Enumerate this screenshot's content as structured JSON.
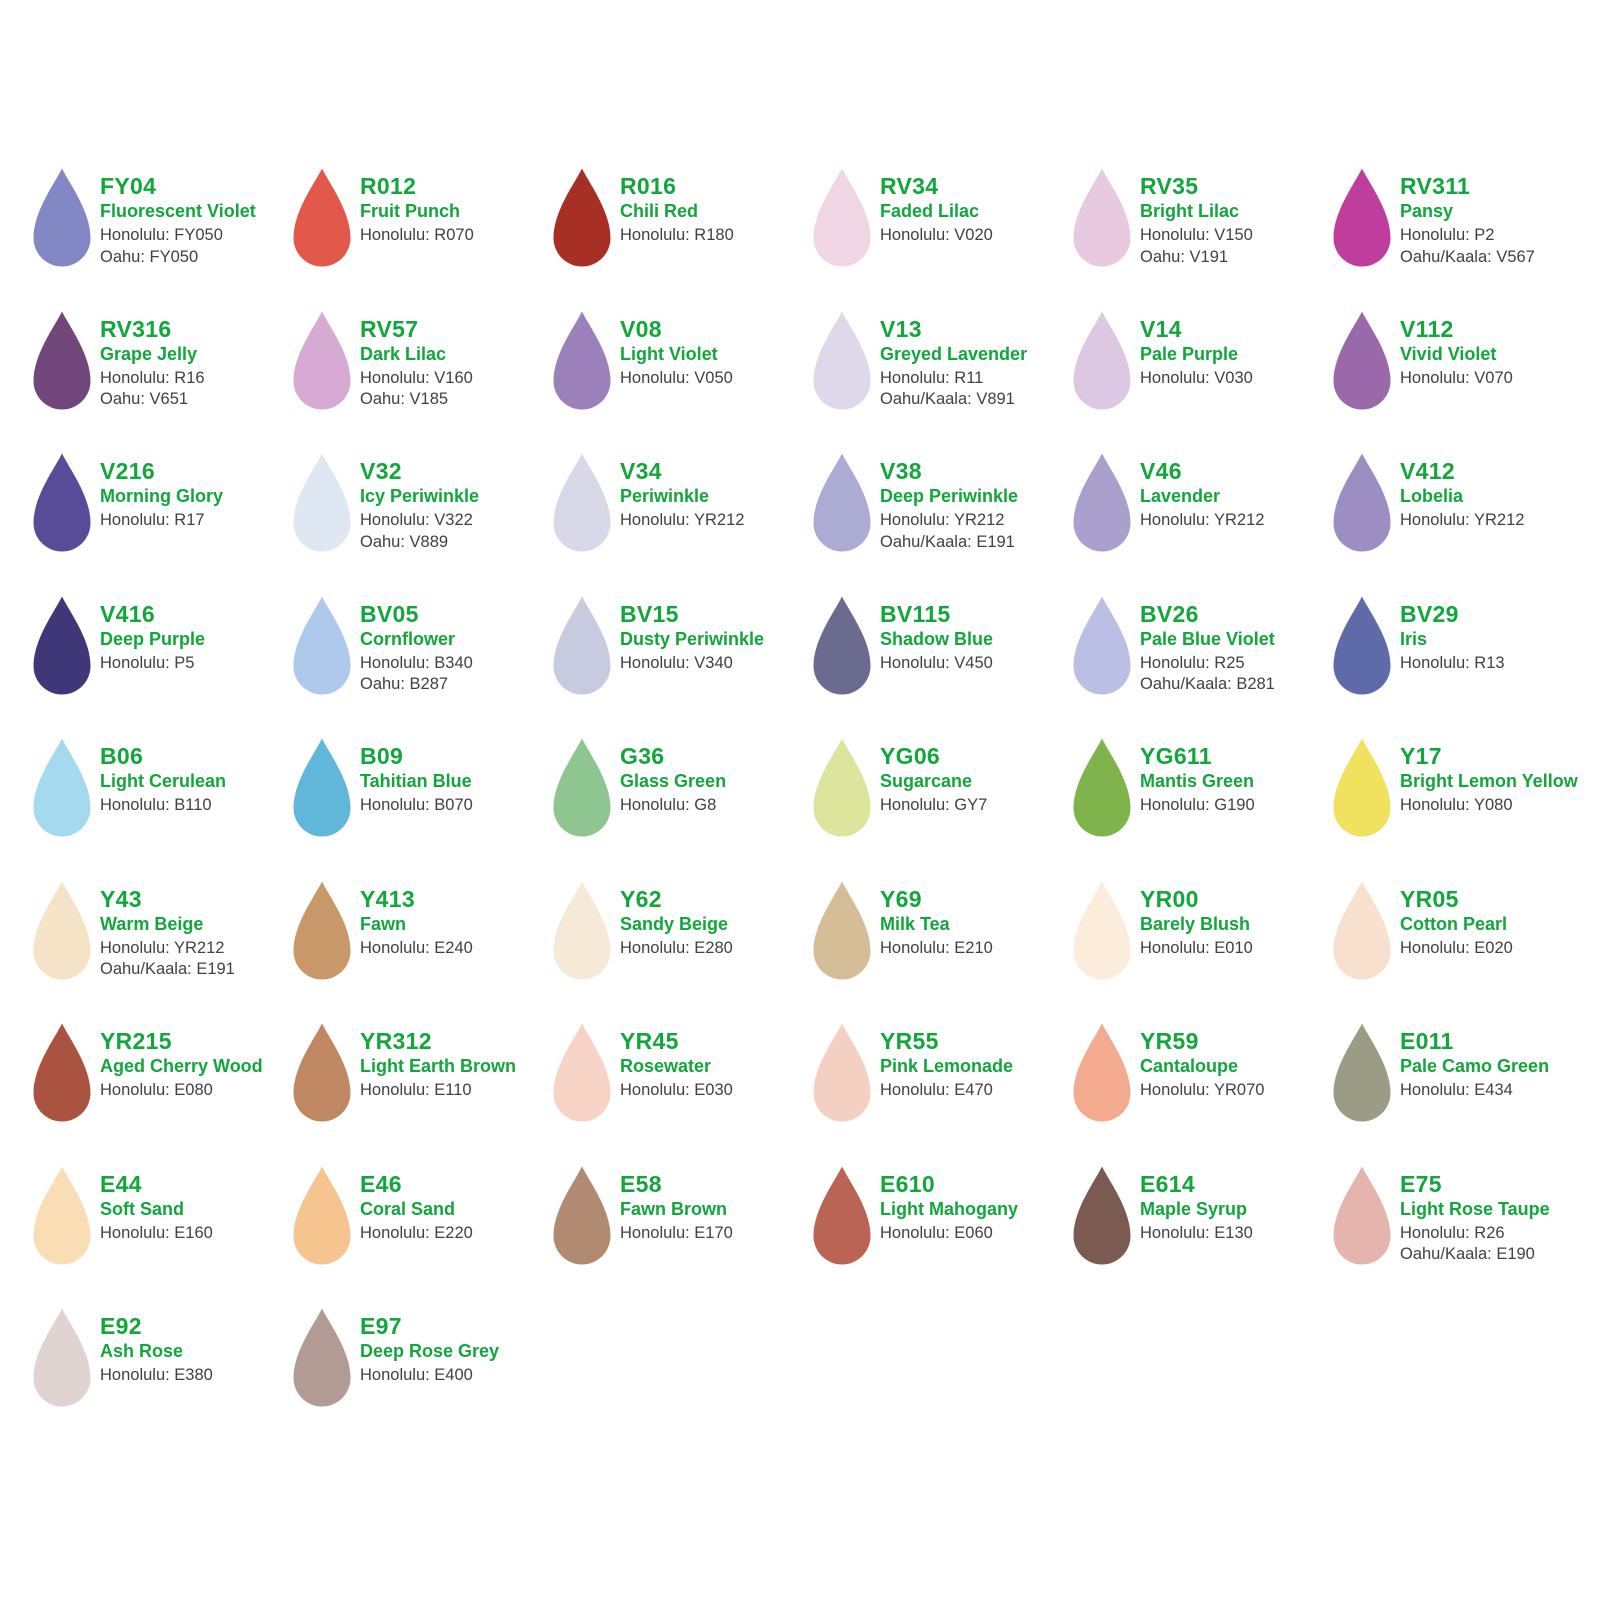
{
  "colors": {
    "accent_green": "#12A63C",
    "label_gray": "#414042",
    "background": "#FFFFFF"
  },
  "swatches": [
    {
      "code": "FY04",
      "name": "Fluorescent Violet",
      "color": "#8288C4",
      "equivalents": [
        "Honolulu: FY050",
        "Oahu: FY050"
      ]
    },
    {
      "code": "R012",
      "name": "Fruit Punch",
      "color": "#E2594B",
      "equivalents": [
        "Honolulu: R070"
      ]
    },
    {
      "code": "R016",
      "name": "Chili Red",
      "color": "#A72F23",
      "equivalents": [
        "Honolulu: R180"
      ]
    },
    {
      "code": "RV34",
      "name": "Faded Lilac",
      "color": "#F0D5E5",
      "equivalents": [
        "Honolulu: V020"
      ]
    },
    {
      "code": "RV35",
      "name": "Bright Lilac",
      "color": "#E7CADF",
      "equivalents": [
        "Honolulu: V150",
        "Oahu: V191"
      ]
    },
    {
      "code": "RV311",
      "name": "Pansy",
      "color": "#BF3D9C",
      "equivalents": [
        "Honolulu: P2",
        "Oahu/Kaala: V567"
      ]
    },
    {
      "code": "RV316",
      "name": "Grape Jelly",
      "color": "#71477B",
      "equivalents": [
        "Honolulu: R16",
        "Oahu: V651"
      ]
    },
    {
      "code": "RV57",
      "name": "Dark Lilac",
      "color": "#D6AAD2",
      "equivalents": [
        "Honolulu: V160",
        "Oahu: V185"
      ]
    },
    {
      "code": "V08",
      "name": "Light Violet",
      "color": "#9C80BA",
      "equivalents": [
        "Honolulu: V050"
      ]
    },
    {
      "code": "V13",
      "name": "Greyed Lavender",
      "color": "#DFD8EA",
      "equivalents": [
        "Honolulu: R11",
        "Oahu/Kaala: V891"
      ]
    },
    {
      "code": "V14",
      "name": "Pale Purple",
      "color": "#DCC8E2",
      "equivalents": [
        "Honolulu: V030"
      ]
    },
    {
      "code": "V112",
      "name": "Vivid Violet",
      "color": "#9A69A9",
      "equivalents": [
        "Honolulu: V070"
      ]
    },
    {
      "code": "V216",
      "name": "Morning Glory",
      "color": "#584B98",
      "equivalents": [
        "Honolulu: R17"
      ]
    },
    {
      "code": "V32",
      "name": "Icy Periwinkle",
      "color": "#DFE7F3",
      "equivalents": [
        "Honolulu: V322",
        "Oahu: V889"
      ]
    },
    {
      "code": "V34",
      "name": "Periwinkle",
      "color": "#D9D8E9",
      "equivalents": [
        "Honolulu: YR212"
      ]
    },
    {
      "code": "V38",
      "name": "Deep Periwinkle",
      "color": "#ACABD4",
      "equivalents": [
        "Honolulu: YR212",
        "Oahu/Kaala: E191"
      ]
    },
    {
      "code": "V46",
      "name": "Lavender",
      "color": "#ABA0CD",
      "equivalents": [
        "Honolulu: YR212"
      ]
    },
    {
      "code": "V412",
      "name": "Lobelia",
      "color": "#9C8EC2",
      "equivalents": [
        "Honolulu: YR212"
      ]
    },
    {
      "code": "V416",
      "name": "Deep Purple",
      "color": "#403779",
      "equivalents": [
        "Honolulu: P5"
      ]
    },
    {
      "code": "BV05",
      "name": "Cornflower",
      "color": "#AFC9EC",
      "equivalents": [
        "Honolulu: B340",
        "Oahu: B287"
      ]
    },
    {
      "code": "BV15",
      "name": "Dusty Periwinkle",
      "color": "#C7CBDF",
      "equivalents": [
        "Honolulu: V340"
      ]
    },
    {
      "code": "BV115",
      "name": "Shadow Blue",
      "color": "#6B6B90",
      "equivalents": [
        "Honolulu: V450"
      ]
    },
    {
      "code": "BV26",
      "name": "Pale Blue Violet",
      "color": "#BBBFE4",
      "equivalents": [
        "Honolulu: R25",
        "Oahu/Kaala: B281"
      ]
    },
    {
      "code": "BV29",
      "name": "Iris",
      "color": "#5F6BA9",
      "equivalents": [
        "Honolulu: R13"
      ]
    },
    {
      "code": "B06",
      "name": "Light Cerulean",
      "color": "#A5D9EF",
      "equivalents": [
        "Honolulu: B110"
      ]
    },
    {
      "code": "B09",
      "name": "Tahitian Blue",
      "color": "#60B7DA",
      "equivalents": [
        "Honolulu: B070"
      ]
    },
    {
      "code": "G36",
      "name": "Glass Green",
      "color": "#8EC590",
      "equivalents": [
        "Honolulu: G8"
      ]
    },
    {
      "code": "YG06",
      "name": "Sugarcane",
      "color": "#DDE49B",
      "equivalents": [
        "Honolulu: GY7"
      ]
    },
    {
      "code": "YG611",
      "name": "Mantis Green",
      "color": "#7EB44B",
      "equivalents": [
        "Honolulu: G190"
      ]
    },
    {
      "code": "Y17",
      "name": "Bright Lemon Yellow",
      "color": "#F0E15F",
      "equivalents": [
        "Honolulu: Y080"
      ]
    },
    {
      "code": "Y43",
      "name": "Warm Beige",
      "color": "#F4E3C6",
      "equivalents": [
        "Honolulu: YR212",
        "Oahu/Kaala: E191"
      ]
    },
    {
      "code": "Y413",
      "name": "Fawn",
      "color": "#C99868",
      "equivalents": [
        "Honolulu: E240"
      ]
    },
    {
      "code": "Y62",
      "name": "Sandy Beige",
      "color": "#F6E9D7",
      "equivalents": [
        "Honolulu: E280"
      ]
    },
    {
      "code": "Y69",
      "name": "Milk Tea",
      "color": "#D4BD97",
      "equivalents": [
        "Honolulu: E210"
      ]
    },
    {
      "code": "YR00",
      "name": "Barely Blush",
      "color": "#FBECDC",
      "equivalents": [
        "Honolulu: E010"
      ]
    },
    {
      "code": "YR05",
      "name": "Cotton Pearl",
      "color": "#F7E0CD",
      "equivalents": [
        "Honolulu: E020"
      ]
    },
    {
      "code": "YR215",
      "name": "Aged Cherry Wood",
      "color": "#AA5340",
      "equivalents": [
        "Honolulu: E080"
      ]
    },
    {
      "code": "YR312",
      "name": "Light Earth Brown",
      "color": "#BF8863",
      "equivalents": [
        "Honolulu: E110"
      ]
    },
    {
      "code": "YR45",
      "name": "Rosewater",
      "color": "#F6D3C5",
      "equivalents": [
        "Honolulu: E030"
      ]
    },
    {
      "code": "YR55",
      "name": "Pink Lemonade",
      "color": "#F4D0C3",
      "equivalents": [
        "Honolulu: E470"
      ]
    },
    {
      "code": "YR59",
      "name": "Cantaloupe",
      "color": "#F3AA8E",
      "equivalents": [
        "Honolulu: YR070"
      ]
    },
    {
      "code": "E011",
      "name": "Pale Camo Green",
      "color": "#9B9B86",
      "equivalents": [
        "Honolulu: E434"
      ]
    },
    {
      "code": "E44",
      "name": "Soft Sand",
      "color": "#F9DEB5",
      "equivalents": [
        "Honolulu: E160"
      ]
    },
    {
      "code": "E46",
      "name": "Coral Sand",
      "color": "#F6C58F",
      "equivalents": [
        "Honolulu: E220"
      ]
    },
    {
      "code": "E58",
      "name": "Fawn Brown",
      "color": "#B18B71",
      "equivalents": [
        "Honolulu: E170"
      ]
    },
    {
      "code": "E610",
      "name": "Light Mahogany",
      "color": "#BA6455",
      "equivalents": [
        "Honolulu: E060"
      ]
    },
    {
      "code": "E614",
      "name": "Maple Syrup",
      "color": "#7B5B51",
      "equivalents": [
        "Honolulu: E130"
      ]
    },
    {
      "code": "E75",
      "name": "Light Rose Taupe",
      "color": "#E4B4AD",
      "equivalents": [
        "Honolulu: R26",
        "Oahu/Kaala: E190"
      ]
    },
    {
      "code": "E92",
      "name": "Ash Rose",
      "color": "#DFD4CF",
      "equivalents": [
        "Honolulu: E380"
      ]
    },
    {
      "code": "E97",
      "name": "Deep Rose Grey",
      "color": "#B19B94",
      "equivalents": [
        "Honolulu: E400"
      ]
    }
  ]
}
